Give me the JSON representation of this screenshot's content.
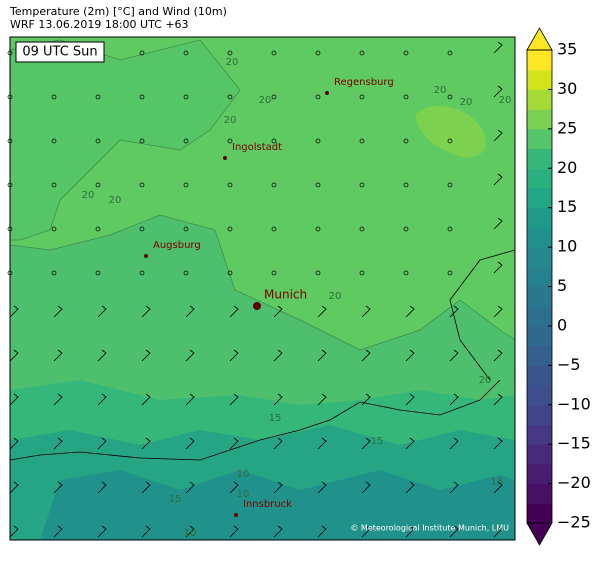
{
  "header": {
    "title": "Temperature (2m) [°C] and Wind (10m)",
    "subtitle": "WRF 13.06.2019 18:00 UTC +63"
  },
  "map": {
    "time_label": "09 UTC Sun",
    "cities": [
      "Regensburg",
      "Ingolstadt",
      "Augsburg",
      "Munich",
      "Innsbruck"
    ],
    "contour_labels": [
      20,
      20,
      20,
      20,
      20,
      20,
      20,
      20,
      20,
      20,
      15,
      15,
      15,
      15,
      10,
      10,
      10
    ],
    "copyright": "© Meteorological Institute Munich, LMU"
  },
  "colorbar": {
    "lim": [
      -25,
      35
    ],
    "ticks": [
      {
        "value": -25,
        "label": "−25"
      },
      {
        "value": -20,
        "label": "−20"
      },
      {
        "value": -15,
        "label": "−15"
      },
      {
        "value": -10,
        "label": "−10"
      },
      {
        "value": -5,
        "label": "−5"
      },
      0,
      5,
      10,
      15,
      20,
      25,
      30,
      35
    ],
    "colors": [
      "#440154",
      "#471063",
      "#481d6f",
      "#472a7a",
      "#453781",
      "#414487",
      "#3d4e8a",
      "#39568c",
      "#355f8d",
      "#31688e",
      "#2d708e",
      "#2a788e",
      "#26818e",
      "#23898e",
      "#21918c",
      "#1f998a",
      "#22a785",
      "#2ab07f",
      "#35b779",
      "#54c568",
      "#7ad151",
      "#a5db36",
      "#d2e21b",
      "#fde725"
    ]
  }
}
